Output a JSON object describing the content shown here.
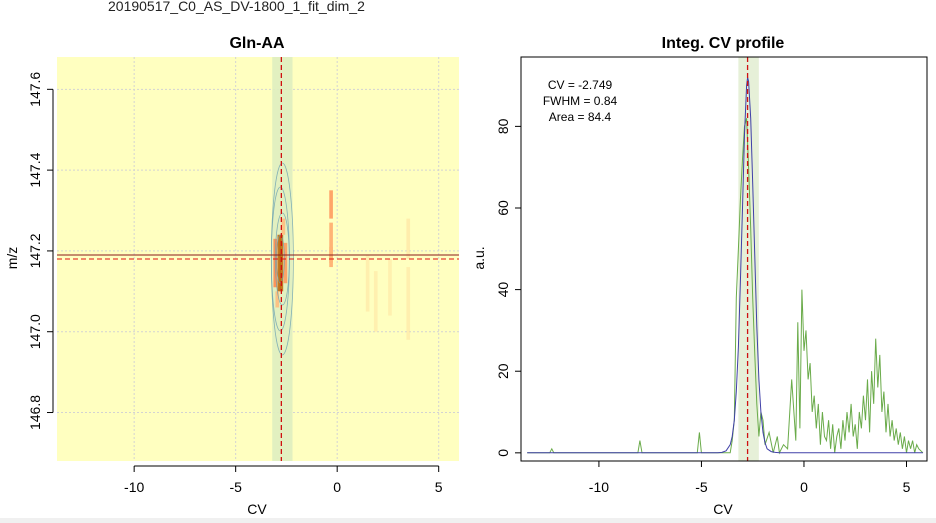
{
  "figure": {
    "suptitle": "20190517_C0_AS_DV-1800_1_fit_dim_2"
  },
  "chart_data": [
    {
      "type": "heatmap",
      "title": "Gln-AA",
      "xlabel": "CV",
      "ylabel": "m/z",
      "xlim": [
        -13.8,
        6.0
      ],
      "ylim": [
        146.68,
        147.68
      ],
      "xticks": [
        -10,
        -5,
        0,
        5
      ],
      "xtick_labels": [
        "-10",
        "-5",
        "0",
        "5"
      ],
      "yticks": [
        146.8,
        147.0,
        147.2,
        147.4,
        147.6
      ],
      "ytick_labels": [
        "146.8",
        "147.0",
        "147.2",
        "147.4",
        "147.6"
      ],
      "grid": true,
      "background_color": "#ffffc0",
      "cv_band": [
        -3.2,
        -2.2
      ],
      "cv_marker": -2.75,
      "mz_marker": 147.185,
      "mz_band": [
        147.18,
        147.19
      ],
      "intensity_cells": [
        {
          "cv": -2.85,
          "mz_low": 147.1,
          "mz_high": 147.24,
          "level": 0.85
        },
        {
          "cv": -2.75,
          "mz_low": 147.1,
          "mz_high": 147.24,
          "level": 0.95
        },
        {
          "cv": -3.05,
          "mz_low": 147.11,
          "mz_high": 147.23,
          "level": 0.6
        },
        {
          "cv": -2.55,
          "mz_low": 147.12,
          "mz_high": 147.22,
          "level": 0.5
        },
        {
          "cv": -2.95,
          "mz_low": 147.06,
          "mz_high": 147.1,
          "level": 0.3
        },
        {
          "cv": -2.65,
          "mz_low": 147.24,
          "mz_high": 147.28,
          "level": 0.3
        },
        {
          "cv": -0.3,
          "mz_low": 147.28,
          "mz_high": 147.35,
          "level": 0.5
        },
        {
          "cv": -0.3,
          "mz_low": 147.16,
          "mz_high": 147.27,
          "level": 0.4
        },
        {
          "cv": -0.3,
          "mz_low": 147.17,
          "mz_high": 147.21,
          "level": 0.35
        },
        {
          "cv": 3.5,
          "mz_low": 147.18,
          "mz_high": 147.28,
          "level": 0.12
        },
        {
          "cv": 1.5,
          "mz_low": 147.05,
          "mz_high": 147.19,
          "level": 0.1
        },
        {
          "cv": 3.5,
          "mz_low": 146.98,
          "mz_high": 147.16,
          "level": 0.1
        },
        {
          "cv": 1.9,
          "mz_low": 147.0,
          "mz_high": 147.15,
          "level": 0.08
        },
        {
          "cv": 2.6,
          "mz_low": 147.04,
          "mz_high": 147.18,
          "level": 0.08
        }
      ]
    },
    {
      "type": "line",
      "title": "Integ. CV profile",
      "xlabel": "CV",
      "ylabel": "a.u.",
      "xlim": [
        -13.8,
        6.0
      ],
      "ylim": [
        -2,
        97
      ],
      "xticks": [
        -10,
        -5,
        0,
        5
      ],
      "xtick_labels": [
        "-10",
        "-5",
        "0",
        "5"
      ],
      "yticks": [
        0,
        20,
        40,
        60,
        80
      ],
      "ytick_labels": [
        "0",
        "20",
        "40",
        "60",
        "80"
      ],
      "grid": false,
      "cv_band": [
        -3.2,
        -2.2
      ],
      "cv_marker": -2.75,
      "annotation": [
        "CV = -2.749",
        "FWHM = 0.84",
        "Area = 84.4"
      ],
      "series": [
        {
          "color": "#6aab4a",
          "x": [
            -13.5,
            -12.4,
            -12.3,
            -12.2,
            -8.1,
            -8.0,
            -7.9,
            -5.2,
            -5.1,
            -5.0,
            -3.6,
            -3.5,
            -3.4,
            -3.3,
            -3.2,
            -3.1,
            -3.0,
            -2.9,
            -2.8,
            -2.7,
            -2.6,
            -2.5,
            -2.4,
            -2.3,
            -2.2,
            -2.1,
            -2.0,
            -1.9,
            -1.7,
            -1.5,
            -1.3,
            -1.2,
            -1.0,
            -0.8,
            -0.6,
            -0.4,
            -0.3,
            -0.2,
            -0.1,
            0.0,
            0.1,
            0.2,
            0.3,
            0.4,
            0.5,
            0.6,
            0.7,
            0.8,
            0.9,
            1.0,
            1.1,
            1.2,
            1.3,
            1.4,
            1.5,
            1.6,
            1.7,
            1.8,
            1.9,
            2.0,
            2.1,
            2.2,
            2.3,
            2.4,
            2.5,
            2.6,
            2.7,
            2.8,
            2.9,
            3.0,
            3.1,
            3.2,
            3.3,
            3.4,
            3.5,
            3.6,
            3.7,
            3.8,
            3.9,
            4.0,
            4.1,
            4.2,
            4.3,
            4.4,
            4.5,
            4.6,
            4.7,
            4.8,
            4.9,
            5.0,
            5.1,
            5.2,
            5.3,
            5.4,
            5.5,
            5.6,
            5.8
          ],
          "y": [
            0,
            0,
            1,
            0,
            0,
            3,
            0,
            0,
            5,
            0,
            0,
            3,
            8,
            38,
            50,
            62,
            72,
            80,
            82,
            70,
            55,
            38,
            24,
            12,
            4,
            10,
            8,
            2,
            5,
            0,
            4,
            0,
            2,
            1,
            18,
            3,
            32,
            6,
            40,
            25,
            30,
            18,
            22,
            10,
            14,
            6,
            12,
            2,
            10,
            4,
            3,
            8,
            1,
            7,
            0,
            4,
            6,
            1,
            8,
            3,
            10,
            5,
            12,
            4,
            7,
            1,
            10,
            6,
            14,
            8,
            18,
            5,
            20,
            12,
            28,
            16,
            24,
            10,
            15,
            5,
            12,
            4,
            8,
            3,
            6,
            2,
            5,
            1,
            4,
            0,
            3,
            1,
            3,
            0,
            2,
            1,
            0
          ]
        },
        {
          "color": "#4040a8",
          "x": [
            -13.5,
            -4.2,
            -4.0,
            -3.8,
            -3.6,
            -3.5,
            -3.4,
            -3.3,
            -3.2,
            -3.1,
            -3.0,
            -2.9,
            -2.8,
            -2.75,
            -2.7,
            -2.6,
            -2.5,
            -2.4,
            -2.3,
            -2.2,
            -2.1,
            -2.0,
            -1.9,
            -1.8,
            -1.6,
            -1.4,
            -1.2,
            5.8
          ],
          "y": [
            0,
            0,
            0.1,
            0.5,
            2,
            4,
            8,
            15,
            26,
            42,
            60,
            78,
            90,
            92,
            91,
            82,
            66,
            48,
            31,
            18,
            10,
            5,
            2.5,
            1,
            0.3,
            0.1,
            0,
            0
          ]
        }
      ]
    }
  ]
}
